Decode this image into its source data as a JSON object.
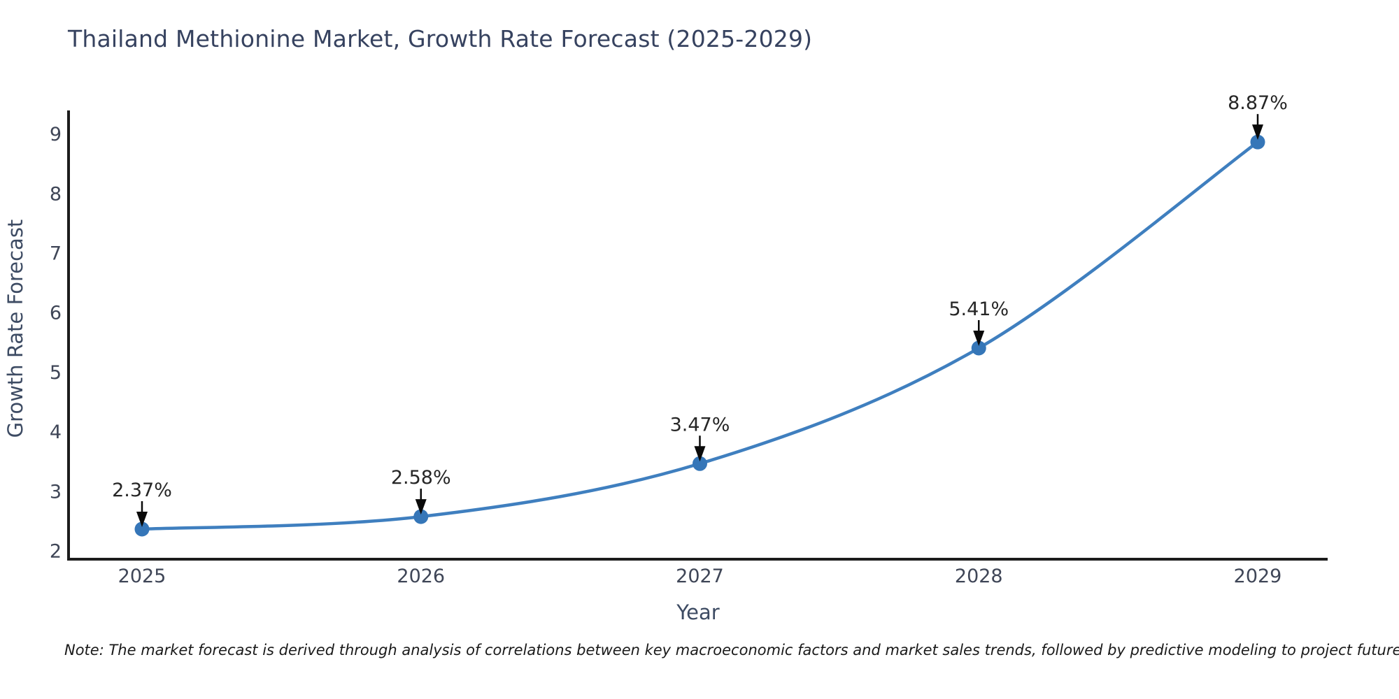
{
  "title": "Thailand Methionine Market, Growth Rate Forecast (2025-2029)",
  "note": "Note: The market forecast is derived through analysis of correlations between key macroeconomic factors and market sales trends, followed by predictive modeling to project future sales.",
  "chart_data": {
    "type": "line",
    "title": "Thailand Methionine Market, Growth Rate Forecast (2025-2029)",
    "xlabel": "Year",
    "ylabel": "Growth Rate Forecast",
    "categories": [
      "2025",
      "2026",
      "2027",
      "2028",
      "2029"
    ],
    "values": [
      2.37,
      2.58,
      3.47,
      5.41,
      8.87
    ],
    "point_labels": [
      "2.37%",
      "2.58%",
      "3.47%",
      "5.41%",
      "8.87%"
    ],
    "yticks": [
      2,
      3,
      4,
      5,
      6,
      7,
      8,
      9
    ],
    "ylim": [
      2,
      9
    ],
    "grid": false,
    "legend": "none",
    "smooth_curve": true,
    "annotations_with_arrows": true,
    "colors": {
      "line": "#3f7fbf",
      "marker": "#3576b8",
      "axis": "#1c1c1c",
      "title": "#36425f",
      "tick_label": "#3f4657",
      "axis_title": "#3d4b63",
      "annotation_text": "#262626",
      "arrow": "#0a0a0a",
      "background": "#ffffff"
    }
  }
}
